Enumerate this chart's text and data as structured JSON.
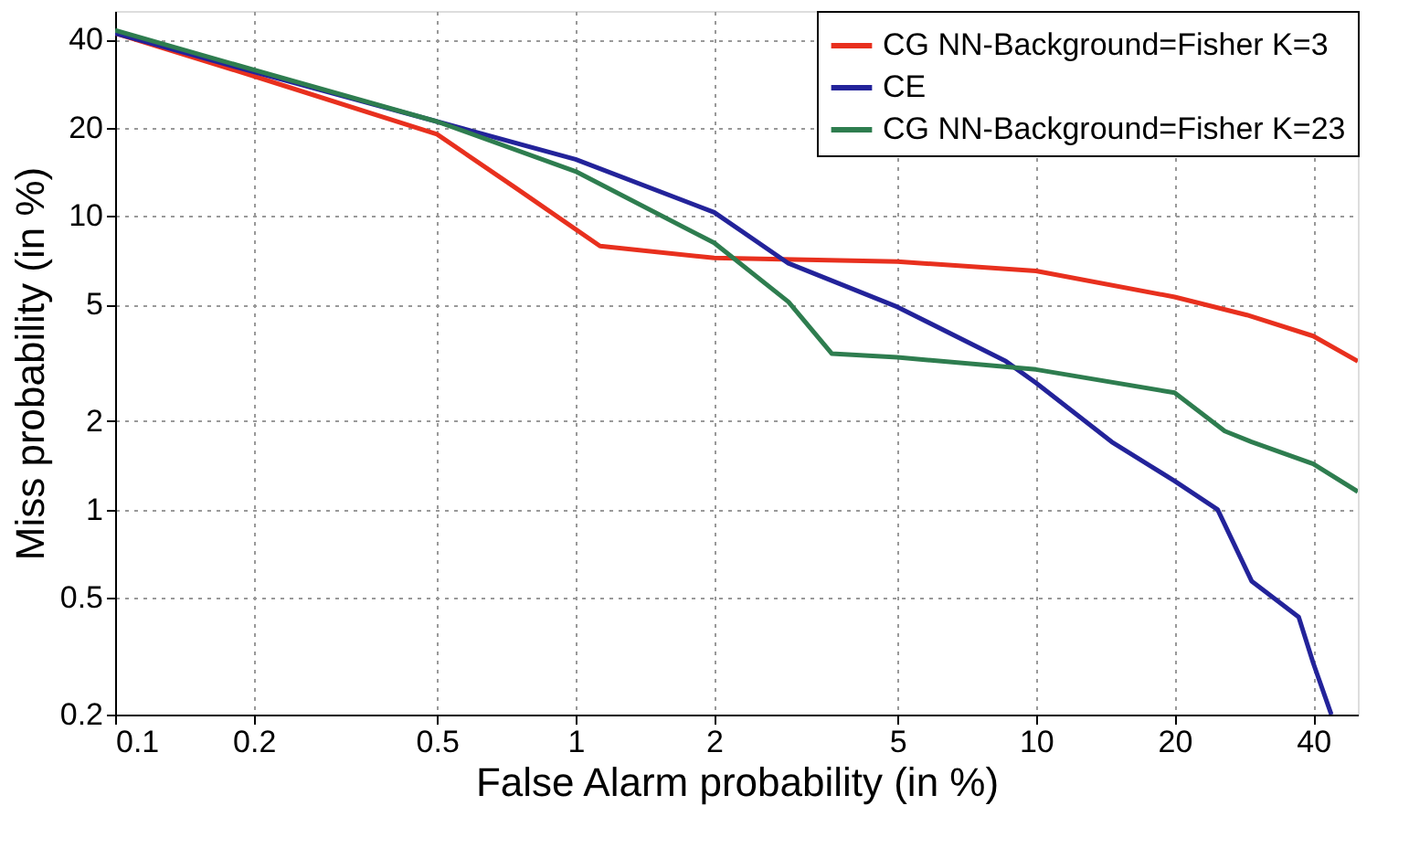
{
  "chart_data": {
    "type": "line",
    "xlabel": "False Alarm probability (in %)",
    "ylabel": "Miss probability (in %)",
    "log": "xy",
    "grid": true,
    "legend": "top right",
    "line_style": "solid",
    "marker": "none",
    "xlim": [
      0.1,
      50
    ],
    "ylim": [
      0.2,
      50
    ],
    "xticks": [
      0.1,
      0.2,
      0.5,
      1,
      2,
      5,
      10,
      20,
      40
    ],
    "yticks": [
      0.2,
      0.5,
      1,
      2,
      5,
      10,
      20,
      40
    ],
    "series": [
      {
        "name": "CG NN-Background=Fisher K=3",
        "color": "#e8301e",
        "x": [
          0.1,
          0.2,
          0.5,
          0.74,
          1.13,
          2,
          5,
          10,
          20,
          28.7,
          40,
          50
        ],
        "values": [
          42,
          30,
          19,
          12.5,
          7.9,
          7.2,
          7.0,
          6.5,
          5.3,
          4.6,
          3.9,
          3.2
        ]
      },
      {
        "name": "CE",
        "color": "#23239a",
        "x": [
          0.1,
          0.2,
          0.5,
          1,
          2,
          2.9,
          5,
          8.6,
          10,
          14.6,
          20,
          24.8,
          29.4,
          37.2,
          40,
          43.8
        ],
        "values": [
          42,
          31,
          21,
          15.6,
          10.3,
          6.9,
          4.9,
          3.2,
          2.7,
          1.7,
          1.25,
          1.0,
          0.57,
          0.43,
          0.3,
          0.2
        ]
      },
      {
        "name": "CG NN-Background=Fisher K=23",
        "color": "#2e7d4f",
        "x": [
          0.1,
          0.2,
          0.5,
          1,
          2,
          2.9,
          3.6,
          5,
          10,
          20,
          25.7,
          29.4,
          40,
          50
        ],
        "values": [
          43,
          31.5,
          21,
          14.2,
          8.1,
          5.1,
          3.4,
          3.3,
          3.0,
          2.5,
          1.85,
          1.7,
          1.43,
          1.15
        ]
      }
    ]
  }
}
